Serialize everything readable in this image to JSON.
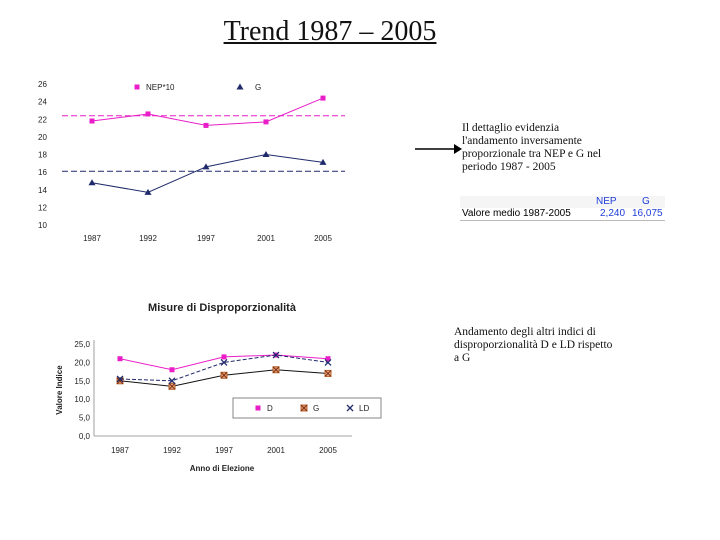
{
  "title": "Trend 1987 – 2005",
  "note1": "Il dettaglio evidenzia l'andamento inversamente proporzionale tra NEP e G nel periodo 1987 - 2005",
  "note2": "Andamento degli altri indici di disproporzionalità D e LD rispetto a G",
  "avg_table": {
    "headers": [
      "NEP",
      "G"
    ],
    "row_label": "Valore medio 1987-2005",
    "values": [
      "2,240",
      "16,075"
    ]
  },
  "colors": {
    "nep": "#e91ec8",
    "g": "#1f2a6b",
    "d": "#e91ec8",
    "g2": "#b5622a",
    "ld": "#1f2a6b"
  },
  "chart_data": [
    {
      "type": "line",
      "title": "",
      "x": [
        "1987",
        "1992",
        "1997",
        "2001",
        "2005"
      ],
      "y_ticks": [
        "26",
        "24",
        "22",
        "20",
        "18",
        "16",
        "14",
        "12",
        "10"
      ],
      "ylim": [
        10,
        26
      ],
      "series": [
        {
          "name": "NEP*10",
          "values": [
            21.8,
            22.6,
            21.3,
            21.7,
            24.4
          ],
          "mean": 22.4
        },
        {
          "name": "G",
          "values": [
            14.8,
            13.7,
            16.6,
            18.0,
            17.1
          ],
          "mean": 16.1
        }
      ]
    },
    {
      "type": "line",
      "title": "Misure di Disproporzionalità",
      "xlabel": "Anno di Elezione",
      "ylabel": "Valore Indice",
      "x": [
        "1987",
        "1992",
        "1997",
        "2001",
        "2005"
      ],
      "y_ticks": [
        "25,0",
        "20,0",
        "15,0",
        "10,0",
        "5,0",
        "0,0"
      ],
      "ylim": [
        0,
        25
      ],
      "series": [
        {
          "name": "D",
          "values": [
            21.0,
            18.0,
            21.5,
            22.0,
            21.0
          ]
        },
        {
          "name": "G",
          "values": [
            15.0,
            13.5,
            16.5,
            18.0,
            17.0
          ]
        },
        {
          "name": "LD",
          "values": [
            15.5,
            15.0,
            20.0,
            22.0,
            20.0
          ]
        }
      ]
    }
  ]
}
